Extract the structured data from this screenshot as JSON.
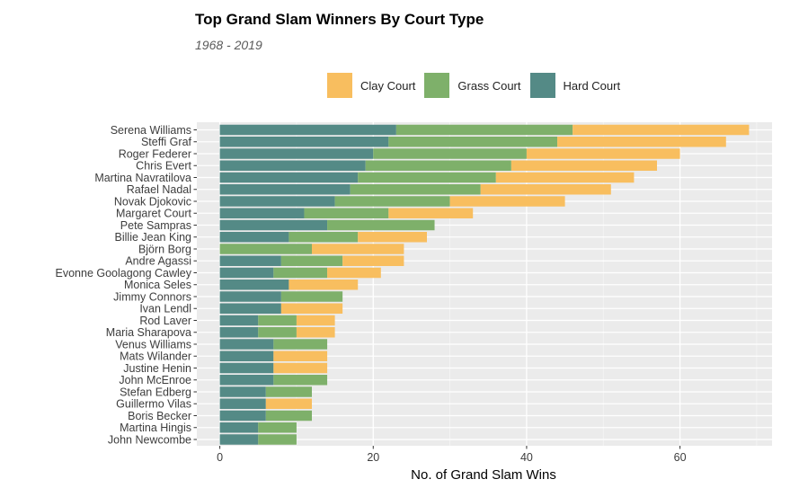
{
  "title": "Top Grand Slam Winners By Court Type",
  "subtitle": "1968 - 2019",
  "legend": [
    {
      "label": "Clay Court",
      "color": "#f8be5f"
    },
    {
      "label": "Grass Court",
      "color": "#7eb06a"
    },
    {
      "label": "Hard Court",
      "color": "#548a86"
    }
  ],
  "chart_data": {
    "type": "bar",
    "orientation": "horizontal",
    "stacked": true,
    "title": "Top Grand Slam Winners By Court Type",
    "subtitle": "1968 - 2019",
    "xlabel": "No. of Grand Slam Wins",
    "ylabel": "",
    "xlim": [
      -3,
      72
    ],
    "xticks": [
      0,
      20,
      40,
      60
    ],
    "grid": true,
    "legend_position": "top",
    "categories": [
      "Serena Williams",
      "Steffi Graf",
      "Roger Federer",
      "Chris Evert",
      "Martina Navratilova",
      "Rafael Nadal",
      "Novak Djokovic",
      "Margaret Court",
      "Pete Sampras",
      "Billie Jean King",
      "Björn Borg",
      "Andre Agassi",
      "Evonne Goolagong Cawley",
      "Monica Seles",
      "Jimmy Connors",
      "Ivan Lendl",
      "Rod Laver",
      "Maria Sharapova",
      "Venus Williams",
      "Mats Wilander",
      "Justine Henin",
      "John McEnroe",
      "Stefan Edberg",
      "Guillermo Vilas",
      "Boris Becker",
      "Martina Hingis",
      "John Newcombe"
    ],
    "series": [
      {
        "name": "Hard Court",
        "color": "#548a86",
        "values": [
          23,
          22,
          20,
          19,
          18,
          17,
          15,
          11,
          14,
          9,
          0,
          8,
          7,
          9,
          8,
          8,
          5,
          5,
          7,
          7,
          7,
          7,
          6,
          6,
          6,
          5,
          5
        ]
      },
      {
        "name": "Grass Court",
        "color": "#7eb06a",
        "values": [
          23,
          22,
          20,
          19,
          18,
          17,
          15,
          11,
          14,
          9,
          12,
          8,
          7,
          0,
          8,
          0,
          5,
          5,
          7,
          0,
          0,
          7,
          6,
          0,
          6,
          5,
          5
        ]
      },
      {
        "name": "Clay Court",
        "color": "#f8be5f",
        "values": [
          23,
          22,
          20,
          19,
          18,
          17,
          15,
          11,
          0,
          9,
          12,
          8,
          7,
          9,
          0,
          8,
          5,
          5,
          0,
          7,
          7,
          0,
          0,
          6,
          0,
          0,
          0
        ]
      }
    ]
  }
}
